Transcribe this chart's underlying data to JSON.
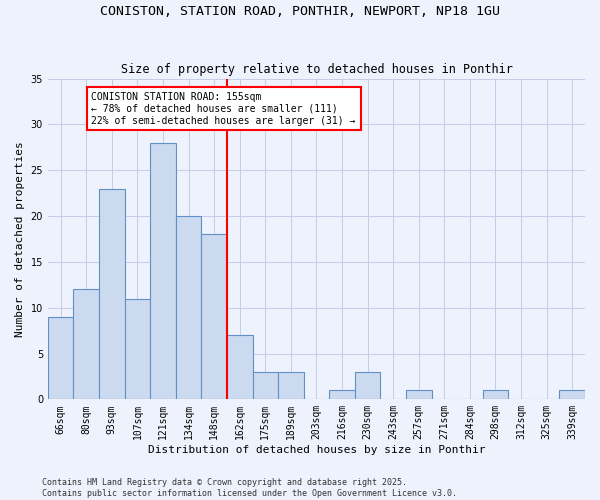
{
  "title": "CONISTON, STATION ROAD, PONTHIR, NEWPORT, NP18 1GU",
  "subtitle": "Size of property relative to detached houses in Ponthir",
  "xlabel": "Distribution of detached houses by size in Ponthir",
  "ylabel": "Number of detached properties",
  "footnote": "Contains HM Land Registry data © Crown copyright and database right 2025.\nContains public sector information licensed under the Open Government Licence v3.0.",
  "bin_labels": [
    "66sqm",
    "80sqm",
    "93sqm",
    "107sqm",
    "121sqm",
    "134sqm",
    "148sqm",
    "162sqm",
    "175sqm",
    "189sqm",
    "203sqm",
    "216sqm",
    "230sqm",
    "243sqm",
    "257sqm",
    "271sqm",
    "284sqm",
    "298sqm",
    "312sqm",
    "325sqm",
    "339sqm"
  ],
  "bar_values": [
    9,
    12,
    23,
    11,
    28,
    20,
    18,
    7,
    3,
    3,
    0,
    1,
    3,
    0,
    1,
    0,
    0,
    1,
    0,
    0,
    1
  ],
  "bar_color": "#ccdaf0",
  "bar_edge_color": "#6090c8",
  "vline_color": "red",
  "vline_index": 7,
  "annotation_title": "CONISTON STATION ROAD: 155sqm",
  "annotation_line1": "← 78% of detached houses are smaller (111)",
  "annotation_line2": "22% of semi-detached houses are larger (31) →",
  "annotation_box_color": "white",
  "annotation_box_edge": "red",
  "ylim": [
    0,
    35
  ],
  "yticks": [
    0,
    5,
    10,
    15,
    20,
    25,
    30,
    35
  ],
  "background_color": "#eef2fc",
  "grid_color": "#c5cce8",
  "title_fontsize": 9.5,
  "subtitle_fontsize": 8.5,
  "axis_label_fontsize": 8,
  "tick_fontsize": 7,
  "annotation_fontsize": 7,
  "footnote_fontsize": 6
}
